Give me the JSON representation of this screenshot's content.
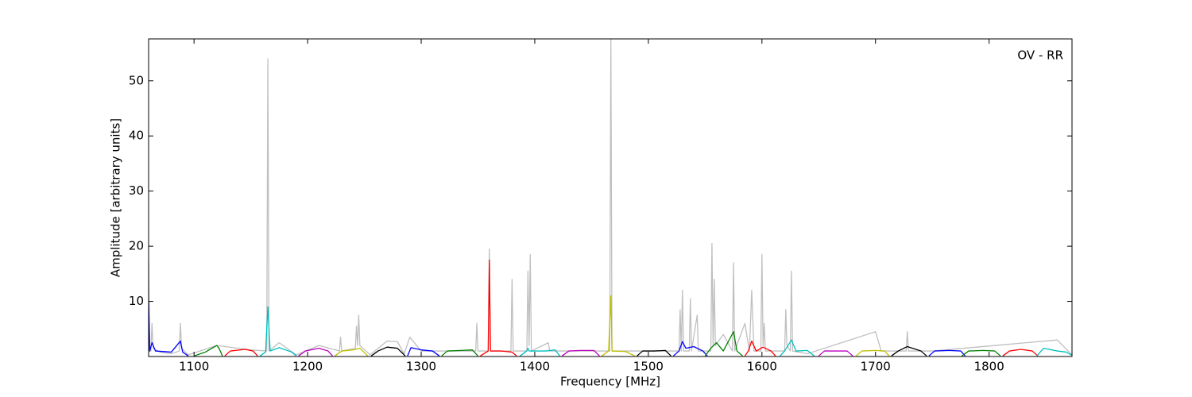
{
  "chart_data": {
    "type": "line",
    "annotation": "OV - RR",
    "xlabel": "Frequency [MHz]",
    "ylabel": "Amplitude [arbitrary units]",
    "xlim": [
      1060,
      1873
    ],
    "ylim": [
      0,
      57.6
    ],
    "xticks": [
      1100,
      1200,
      1300,
      1400,
      1500,
      1600,
      1700,
      1800
    ],
    "yticks": [
      10,
      20,
      30,
      40,
      50
    ],
    "grid": false,
    "series": [
      {
        "color": "#bfbfbf",
        "x": [
          1060,
          1061,
          1062,
          1063,
          1064,
          1070,
          1080,
          1087,
          1088,
          1089,
          1095,
          1120,
          1150,
          1164,
          1165,
          1166,
          1175,
          1190,
          1210,
          1228,
          1229,
          1230,
          1242,
          1243,
          1244,
          1245,
          1246,
          1255,
          1270,
          1279,
          1285,
          1290,
          1300,
          1348,
          1349,
          1350,
          1359,
          1360,
          1361,
          1379,
          1380,
          1381,
          1393,
          1394,
          1395,
          1396,
          1397,
          1412,
          1413,
          1466,
          1467,
          1468,
          1527,
          1528,
          1529,
          1530,
          1531,
          1536,
          1537,
          1538,
          1543,
          1544,
          1555,
          1556,
          1557,
          1558,
          1559,
          1566,
          1574,
          1575,
          1576,
          1585,
          1589,
          1591,
          1593,
          1599,
          1600,
          1601,
          1602,
          1603,
          1620,
          1621,
          1622,
          1625,
          1626,
          1627,
          1640,
          1700,
          1705,
          1727,
          1728,
          1729,
          1750,
          1860,
          1873
        ],
        "values": [
          18,
          1,
          1,
          6,
          1.5,
          0.8,
          0.5,
          1,
          6,
          1.5,
          0.3,
          2,
          1.2,
          1,
          54,
          1,
          2.5,
          0.3,
          2,
          1,
          3.5,
          1,
          1.5,
          5.5,
          2,
          7.5,
          2,
          0.3,
          2.8,
          2.7,
          0.5,
          3.5,
          1,
          1,
          6,
          1,
          1,
          19.5,
          1,
          1,
          14,
          1,
          1,
          15.5,
          2,
          18.5,
          1,
          2.5,
          1,
          1,
          57.6,
          1,
          1,
          8.5,
          1,
          12,
          1,
          1,
          10.5,
          1,
          7.5,
          1,
          1,
          20.5,
          2,
          14,
          2,
          4,
          1,
          17,
          1,
          6,
          1,
          12,
          1,
          1,
          18.5,
          2,
          6,
          1,
          1,
          8.5,
          2,
          1,
          15.5,
          1,
          0.5,
          4.5,
          1,
          1,
          4.5,
          1,
          1,
          3,
          0.3
        ]
      },
      {
        "color": "#0000ff",
        "x": [
          1060,
          1061,
          1063,
          1066,
          1080,
          1088,
          1090,
          1095
        ],
        "values": [
          10,
          1,
          2.5,
          1,
          0.8,
          2.8,
          0.8,
          0.1
        ]
      },
      {
        "color": "#008000",
        "x": [
          1100,
          1110,
          1120,
          1122,
          1125
        ],
        "values": [
          0.1,
          0.8,
          2,
          1.5,
          0.1
        ]
      },
      {
        "color": "#ff0000",
        "x": [
          1127,
          1132,
          1145,
          1152,
          1156
        ],
        "values": [
          0.1,
          1,
          1.3,
          1,
          0.1
        ]
      },
      {
        "color": "#00bfbf",
        "x": [
          1158,
          1163,
          1165,
          1167,
          1175,
          1186,
          1190
        ],
        "values": [
          0.1,
          0.8,
          9,
          1,
          1.6,
          0.8,
          0.1
        ]
      },
      {
        "color": "#bf00bf",
        "x": [
          1192,
          1198,
          1210,
          1218,
          1222
        ],
        "values": [
          0.1,
          1,
          1.5,
          1,
          0.1
        ]
      },
      {
        "color": "#bfbf00",
        "x": [
          1224,
          1230,
          1240,
          1246,
          1253
        ],
        "values": [
          0.1,
          1,
          1.2,
          1.5,
          0.1
        ]
      },
      {
        "color": "#000000",
        "x": [
          1256,
          1262,
          1270,
          1279,
          1286
        ],
        "values": [
          0.1,
          1,
          1.7,
          1.5,
          0.1
        ]
      },
      {
        "color": "#0000ff",
        "x": [
          1288,
          1291,
          1300,
          1310,
          1316
        ],
        "values": [
          0.1,
          1.6,
          1.2,
          1,
          0.1
        ]
      },
      {
        "color": "#008000",
        "x": [
          1318,
          1323,
          1335,
          1345,
          1350
        ],
        "values": [
          0.1,
          1,
          1.1,
          1.2,
          0.1
        ]
      },
      {
        "color": "#ff0000",
        "x": [
          1352,
          1359,
          1360,
          1361,
          1370,
          1380,
          1384
        ],
        "values": [
          0.1,
          1,
          17.5,
          1,
          1,
          0.8,
          0.1
        ]
      },
      {
        "color": "#00bfbf",
        "x": [
          1387,
          1393,
          1394,
          1395,
          1410,
          1418,
          1422
        ],
        "values": [
          0.1,
          1,
          1.5,
          1,
          1,
          1.2,
          0.1
        ]
      },
      {
        "color": "#bf00bf",
        "x": [
          1424,
          1430,
          1440,
          1452,
          1457
        ],
        "values": [
          0.1,
          1,
          1.1,
          1.1,
          0.1
        ]
      },
      {
        "color": "#bfbf00",
        "x": [
          1459,
          1465,
          1467,
          1468,
          1480,
          1488
        ],
        "values": [
          0.1,
          1,
          11,
          1,
          0.9,
          0.1
        ]
      },
      {
        "color": "#000000",
        "x": [
          1490,
          1495,
          1505,
          1515,
          1520
        ],
        "values": [
          0.1,
          1,
          1,
          1.1,
          0.1
        ]
      },
      {
        "color": "#0000ff",
        "x": [
          1522,
          1527,
          1530,
          1533,
          1540,
          1548,
          1552
        ],
        "values": [
          0.1,
          1,
          2.7,
          1.5,
          1.8,
          1,
          0.1
        ]
      },
      {
        "color": "#008000",
        "x": [
          1550,
          1555,
          1560,
          1566,
          1575,
          1578,
          1583
        ],
        "values": [
          0.1,
          1.5,
          2.5,
          1,
          4.5,
          1,
          0.1
        ]
      },
      {
        "color": "#ff0000",
        "x": [
          1585,
          1588,
          1591,
          1595,
          1601,
          1608,
          1612
        ],
        "values": [
          0.1,
          1,
          2.8,
          1,
          1.7,
          1,
          0.1
        ]
      },
      {
        "color": "#00bfbf",
        "x": [
          1616,
          1620,
          1626,
          1630,
          1640,
          1646
        ],
        "values": [
          0.1,
          1,
          3,
          1,
          1.1,
          0.1
        ]
      },
      {
        "color": "#bf00bf",
        "x": [
          1650,
          1655,
          1665,
          1675,
          1680
        ],
        "values": [
          0.1,
          1,
          1,
          1,
          0.1
        ]
      },
      {
        "color": "#bfbf00",
        "x": [
          1683,
          1688,
          1700,
          1708,
          1712
        ],
        "values": [
          0.1,
          1,
          1.1,
          1,
          0.1
        ]
      },
      {
        "color": "#000000",
        "x": [
          1714,
          1720,
          1728,
          1740,
          1745
        ],
        "values": [
          0.1,
          1,
          1.8,
          1,
          0.1
        ]
      },
      {
        "color": "#0000ff",
        "x": [
          1747,
          1752,
          1765,
          1775,
          1779
        ],
        "values": [
          0.1,
          1,
          1.1,
          1,
          0.1
        ]
      },
      {
        "color": "#008000",
        "x": [
          1776,
          1782,
          1795,
          1805,
          1810
        ],
        "values": [
          0.1,
          1,
          1.1,
          1,
          0.1
        ]
      },
      {
        "color": "#ff0000",
        "x": [
          1812,
          1818,
          1828,
          1838,
          1843
        ],
        "values": [
          0.1,
          1,
          1.3,
          1,
          0.1
        ]
      },
      {
        "color": "#00bfbf",
        "x": [
          1842,
          1848,
          1860,
          1868,
          1873
        ],
        "values": [
          0.1,
          1.5,
          1,
          0.8,
          0.2
        ]
      }
    ]
  }
}
